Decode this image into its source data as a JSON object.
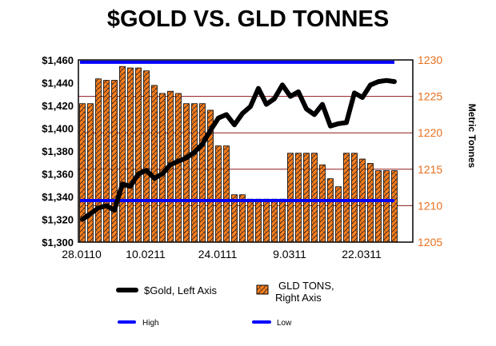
{
  "chart_data": {
    "type": "bar+line",
    "title": "$GOLD VS. GLD TONNES",
    "ylabel_right": "Metric Tonnes",
    "x_tick_labels": [
      "28.0110",
      "10.0211",
      "24.0111",
      "9.0311",
      "22.0311"
    ],
    "x_tick_indices": [
      0,
      8,
      17,
      26,
      35
    ],
    "left_axis": {
      "ticks": [
        "$1,300",
        "$1,320",
        "$1,340",
        "$1,360",
        "$1,380",
        "$1,400",
        "$1,420",
        "$1,440",
        "$1,460"
      ],
      "range": [
        1300,
        1460
      ]
    },
    "right_axis": {
      "ticks": [
        "1205",
        "1210",
        "1215",
        "1220",
        "1225",
        "1230"
      ],
      "range": [
        1205,
        1230
      ]
    },
    "grid": "horizontal at right-axis ticks",
    "series": [
      {
        "name": "$Gold, Left Axis",
        "type": "line",
        "axis": "left",
        "color": "#000000",
        "values": [
          1320,
          1325,
          1330,
          1332,
          1328,
          1351,
          1349,
          1360,
          1363,
          1356,
          1360,
          1368,
          1371,
          1374,
          1379,
          1386,
          1398,
          1409,
          1412,
          1403,
          1413,
          1419,
          1435,
          1421,
          1426,
          1438,
          1428,
          1432,
          1417,
          1412,
          1421,
          1402,
          1404,
          1405,
          1431,
          1427,
          1438,
          1441,
          1442,
          1441
        ]
      },
      {
        "name": "GLD TONS, Right Axis",
        "type": "bar",
        "axis": "right",
        "color": "#ff7f1e",
        "values": [
          1224,
          1224,
          1227.4,
          1227.2,
          1227.2,
          1229.1,
          1228.9,
          1228.9,
          1228.5,
          1226.5,
          1225.4,
          1225.7,
          1225.4,
          1224,
          1224,
          1224,
          1223.1,
          1218.2,
          1218.2,
          1211.5,
          1211.5,
          1210.9,
          1210.9,
          1210.9,
          1210.9,
          1210.9,
          1217.2,
          1217.2,
          1217.2,
          1217.2,
          1215.6,
          1213.7,
          1212.6,
          1217.2,
          1217.2,
          1216.4,
          1215.8,
          1214.8,
          1214.8,
          1214.8
        ]
      },
      {
        "name": "High",
        "type": "line",
        "axis": "left",
        "color": "#0000ff",
        "value": 1458
      },
      {
        "name": "Low",
        "type": "line",
        "axis": "left",
        "color": "#0000ff",
        "value": 1336.5
      }
    ],
    "legend": {
      "gold": "$Gold, Left Axis",
      "gld_line1": "GLD TONS,",
      "gld_line2": "Right Axis",
      "high": "High",
      "low": "Low"
    },
    "legend_position": "bottom"
  }
}
